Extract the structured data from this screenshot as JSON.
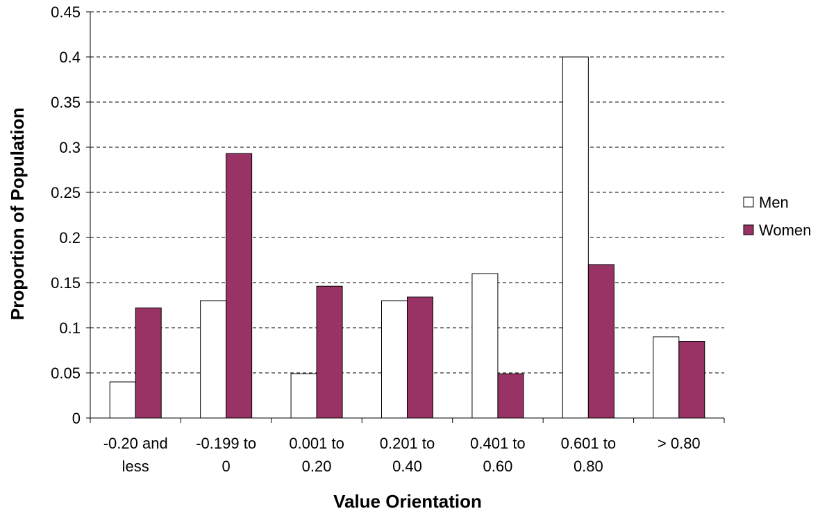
{
  "chart_data": {
    "type": "bar",
    "title": "",
    "xlabel": "Value Orientation",
    "ylabel": "Proportion of Population",
    "categories": [
      [
        "-0.20 and",
        "less"
      ],
      [
        "-0.199 to",
        "0"
      ],
      [
        "0.001 to",
        "0.20"
      ],
      [
        "0.201 to",
        "0.40"
      ],
      [
        "0.401 to",
        "0.60"
      ],
      [
        "0.601 to",
        "0.80"
      ],
      [
        "> 0.80"
      ]
    ],
    "series": [
      {
        "name": "Men",
        "color": "#ffffff",
        "values": [
          0.04,
          0.13,
          0.049,
          0.13,
          0.16,
          0.4,
          0.09
        ]
      },
      {
        "name": "Women",
        "color": "#993366",
        "values": [
          0.122,
          0.293,
          0.146,
          0.134,
          0.049,
          0.17,
          0.085
        ]
      }
    ],
    "ylim": [
      0,
      0.45
    ],
    "yticks": [
      "0",
      "0.05",
      "0.1",
      "0.15",
      "0.2",
      "0.25",
      "0.3",
      "0.35",
      "0.4",
      "0.45"
    ],
    "grid": true,
    "legend_position": "right"
  }
}
